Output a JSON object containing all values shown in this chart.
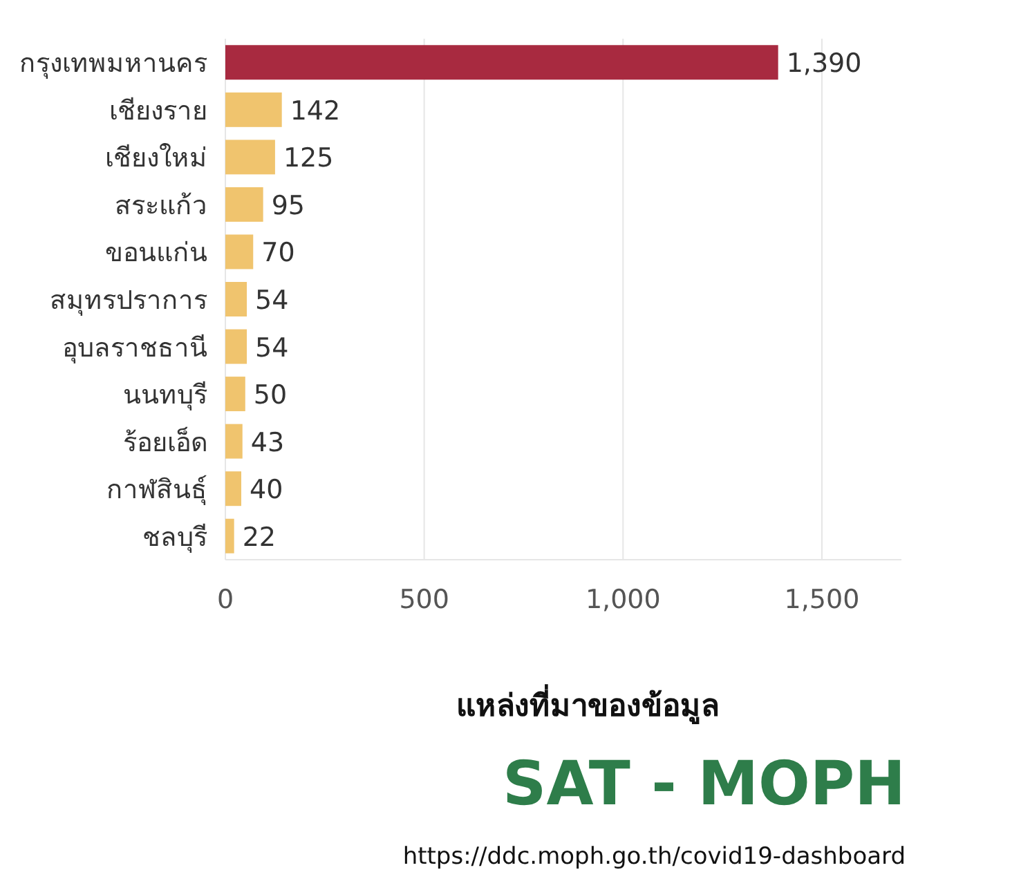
{
  "chart_data": {
    "type": "bar",
    "orientation": "horizontal",
    "categories": [
      "กรุงเทพมหานคร",
      "เชียงราย",
      "เชียงใหม่",
      "สระแก้ว",
      "ขอนแก่น",
      "สมุทรปราการ",
      "อุบลราชธานี",
      "นนทบุรี",
      "ร้อยเอ็ด",
      "กาฬสินธุ์",
      "ชลบุรี"
    ],
    "values": [
      1390,
      142,
      125,
      95,
      70,
      54,
      54,
      50,
      43,
      40,
      22
    ],
    "colors": [
      "#a82a40",
      "#f0c46e",
      "#f0c46e",
      "#f0c46e",
      "#f0c46e",
      "#f0c46e",
      "#f0c46e",
      "#f0c46e",
      "#f0c46e",
      "#f0c46e",
      "#f0c46e"
    ],
    "value_labels": [
      "1,390",
      "142",
      "125",
      "95",
      "70",
      "54",
      "54",
      "50",
      "43",
      "40",
      "22"
    ],
    "xlim": [
      0,
      1700
    ],
    "xticks": [
      0,
      500,
      {
        "value": 1000,
        "label": "1,000"
      },
      {
        "value": 1500,
        "label": "1,500"
      }
    ],
    "grid": "x",
    "annotations": [
      "แหล่งที่มาของข้อมูล",
      "SAT - MOPH",
      "https://ddc.moph.go.th/covid19-dashboard"
    ]
  }
}
